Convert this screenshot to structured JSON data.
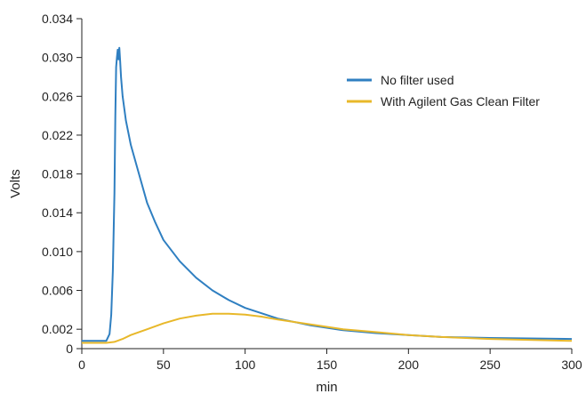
{
  "chart_data": {
    "type": "line",
    "xlabel": "min",
    "ylabel": "Volts",
    "xlim": [
      0,
      300
    ],
    "ylim": [
      0,
      0.034
    ],
    "x_ticks": [
      0,
      50,
      100,
      150,
      200,
      250,
      300
    ],
    "y_ticks": [
      0,
      0.002,
      0.006,
      0.01,
      0.014,
      0.018,
      0.022,
      0.026,
      0.03,
      0.034
    ],
    "x_tick_labels": [
      "0",
      "50",
      "100",
      "150",
      "200",
      "250",
      "300"
    ],
    "y_tick_labels": [
      "0",
      "0.002",
      "0.006",
      "0.010",
      "0.014",
      "0.018",
      "0.022",
      "0.026",
      "0.030",
      "0.034"
    ],
    "grid": false,
    "legend_position": "upper-right",
    "series": [
      {
        "name": "No filter used",
        "color": "#2f7fc1",
        "x": [
          0,
          10,
          15,
          17,
          18,
          19,
          20,
          20.5,
          21,
          21.5,
          22,
          22.5,
          23,
          23.5,
          24,
          25,
          27,
          30,
          35,
          40,
          45,
          50,
          60,
          70,
          80,
          90,
          100,
          120,
          140,
          160,
          180,
          200,
          220,
          250,
          300
        ],
        "y": [
          0.0008,
          0.0008,
          0.0008,
          0.0015,
          0.0035,
          0.008,
          0.016,
          0.024,
          0.029,
          0.03,
          0.0308,
          0.0298,
          0.031,
          0.0295,
          0.028,
          0.026,
          0.0235,
          0.021,
          0.018,
          0.015,
          0.013,
          0.0112,
          0.009,
          0.0073,
          0.006,
          0.005,
          0.0042,
          0.0031,
          0.0024,
          0.0019,
          0.0016,
          0.0014,
          0.0012,
          0.0011,
          0.001
        ]
      },
      {
        "name": "With Agilent Gas Clean Filter",
        "color": "#e8b82a",
        "x": [
          0,
          10,
          15,
          20,
          25,
          30,
          40,
          50,
          60,
          70,
          80,
          90,
          100,
          110,
          120,
          140,
          160,
          180,
          200,
          220,
          250,
          300
        ],
        "y": [
          0.0006,
          0.0006,
          0.0006,
          0.0007,
          0.001,
          0.0014,
          0.002,
          0.0026,
          0.0031,
          0.0034,
          0.0036,
          0.0036,
          0.0035,
          0.0033,
          0.003,
          0.0025,
          0.002,
          0.0017,
          0.0014,
          0.0012,
          0.001,
          0.0008
        ]
      }
    ]
  }
}
